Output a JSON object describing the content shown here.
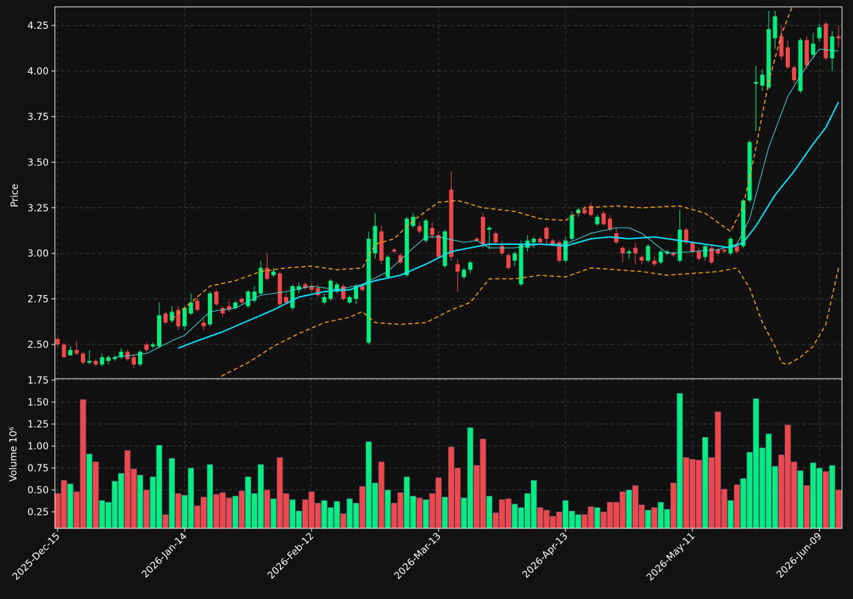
{
  "chart_data": [
    {
      "type": "candlestick",
      "ylabel": "Price",
      "ylim": [
        2.312,
        4.352
      ],
      "yticks": [
        {
          "value": 2.5,
          "label": "2.50"
        },
        2.75,
        {
          "value": 3,
          "label": "3.00"
        },
        3.25,
        {
          "value": 3.5,
          "label": "3.50"
        },
        3.75,
        {
          "value": 4,
          "label": "4.00"
        },
        4.25
      ],
      "xlim": [
        -0.43,
        123.55
      ],
      "grid": true,
      "up_color": "#00f080",
      "down_color": "#f04848",
      "open": [
        2.53,
        2.5,
        2.44,
        2.47,
        2.45,
        2.4,
        2.41,
        2.39,
        2.41,
        2.42,
        2.43,
        2.46,
        2.43,
        2.39,
        2.5,
        2.49,
        2.49,
        2.67,
        2.63,
        2.69,
        2.6,
        2.67,
        2.74,
        2.62,
        2.61,
        2.79,
        2.7,
        2.71,
        2.7,
        2.75,
        2.71,
        2.74,
        2.78,
        2.92,
        2.88,
        2.89,
        2.76,
        2.7,
        2.8,
        2.83,
        2.82,
        2.81,
        2.73,
        2.75,
        2.79,
        2.82,
        2.73,
        2.75,
        2.82,
        2.51,
        3.0,
        3.12,
        2.87,
        3.02,
        2.99,
        2.88,
        3.15,
        3.15,
        3.07,
        3.14,
        3.1,
        2.93,
        3.35,
        2.94,
        2.87,
        2.91,
        3.08,
        3.2,
        3.13,
        3.11,
        3.04,
        2.99,
        2.96,
        2.83,
        3.03,
        3.06,
        3.08,
        3.14,
        3.07,
        3.06,
        2.96,
        3.08,
        3.22,
        3.24,
        3.26,
        3.16,
        3.22,
        3.19,
        3.11,
        3.03,
        3.0,
        3.03,
        2.98,
        2.96,
        2.96,
        2.95,
        3.0,
        3.0,
        2.96,
        3.13,
        3.06,
        3.01,
        2.98,
        3.03,
        3.02,
        3.02,
        3.0,
        3.04,
        3.04,
        3.29,
        3.93,
        3.92,
        3.91,
        4.18,
        4.19,
        4.13,
        4.02,
        3.89,
        4.17,
        4.09,
        4.18,
        4.26,
        4.07,
        4.19
      ],
      "high": [
        2.54,
        2.51,
        2.49,
        2.52,
        2.46,
        2.47,
        2.42,
        2.45,
        2.44,
        2.44,
        2.48,
        2.47,
        2.45,
        2.47,
        2.51,
        2.51,
        2.73,
        2.68,
        2.71,
        2.71,
        2.71,
        2.78,
        2.77,
        2.64,
        2.79,
        2.8,
        2.71,
        2.74,
        2.74,
        2.76,
        2.8,
        2.82,
        2.96,
        3.0,
        2.92,
        2.9,
        2.78,
        2.83,
        2.84,
        2.84,
        2.84,
        2.83,
        2.78,
        2.86,
        2.84,
        2.83,
        2.77,
        2.83,
        2.83,
        3.12,
        3.22,
        3.15,
        2.99,
        3.03,
        3.0,
        3.2,
        3.22,
        3.17,
        3.19,
        3.17,
        3.12,
        3.13,
        3.45,
        2.97,
        2.92,
        2.96,
        3.09,
        3.22,
        3.15,
        3.12,
        3.07,
        3.0,
        3.01,
        3.07,
        3.1,
        3.09,
        3.09,
        3.15,
        3.08,
        3.07,
        3.09,
        3.23,
        3.25,
        3.26,
        3.28,
        3.21,
        3.23,
        3.21,
        3.14,
        3.04,
        3.02,
        3.06,
        2.99,
        3.05,
        2.98,
        3.02,
        3.02,
        3.01,
        3.24,
        3.14,
        3.07,
        3.03,
        3.05,
        3.05,
        3.03,
        3.03,
        3.09,
        3.06,
        3.3,
        3.62,
        4.03,
        4.01,
        4.33,
        4.33,
        4.25,
        4.17,
        4.03,
        4.18,
        4.19,
        4.21,
        4.26,
        4.27,
        4.22,
        4.25
      ],
      "low": [
        2.49,
        2.43,
        2.44,
        2.44,
        2.39,
        2.39,
        2.38,
        2.38,
        2.39,
        2.41,
        2.42,
        2.41,
        2.37,
        2.38,
        2.46,
        2.48,
        2.48,
        2.61,
        2.62,
        2.58,
        2.58,
        2.66,
        2.68,
        2.58,
        2.6,
        2.71,
        2.65,
        2.68,
        2.69,
        2.72,
        2.7,
        2.73,
        2.77,
        2.85,
        2.87,
        2.71,
        2.72,
        2.69,
        2.78,
        2.8,
        2.79,
        2.76,
        2.72,
        2.74,
        2.78,
        2.74,
        2.72,
        2.72,
        2.79,
        2.5,
        2.97,
        2.94,
        2.86,
        3.0,
        2.94,
        2.87,
        3.14,
        3.11,
        3.06,
        3.08,
        2.97,
        2.92,
        2.96,
        2.79,
        2.86,
        2.89,
        3.07,
        3.03,
        3.02,
        3.05,
        2.99,
        2.91,
        2.93,
        2.82,
        3.01,
        3.03,
        3.05,
        3.05,
        3.04,
        2.95,
        2.95,
        3.07,
        3.2,
        3.21,
        3.2,
        3.15,
        3.15,
        3.12,
        3.05,
        2.95,
        2.97,
        2.94,
        2.94,
        2.95,
        2.93,
        2.94,
        2.99,
        2.98,
        2.95,
        3.05,
        3.0,
        2.96,
        2.96,
        2.94,
        2.99,
        3.0,
        2.99,
        3.0,
        3.03,
        3.28,
        3.67,
        3.89,
        3.9,
        4.12,
        4.06,
        4.01,
        3.93,
        3.88,
        4.01,
        4.07,
        4.16,
        4.06,
        4.0,
        4.13
      ],
      "close": [
        2.5,
        2.43,
        2.47,
        2.45,
        2.4,
        2.41,
        2.39,
        2.43,
        2.43,
        2.43,
        2.46,
        2.42,
        2.39,
        2.46,
        2.47,
        2.5,
        2.66,
        2.62,
        2.68,
        2.6,
        2.7,
        2.73,
        2.69,
        2.6,
        2.78,
        2.72,
        2.67,
        2.69,
        2.73,
        2.73,
        2.79,
        2.79,
        2.92,
        2.86,
        2.9,
        2.72,
        2.73,
        2.82,
        2.82,
        2.81,
        2.8,
        2.77,
        2.76,
        2.85,
        2.83,
        2.75,
        2.76,
        2.82,
        2.8,
        3.08,
        3.15,
        2.96,
        2.98,
        3.01,
        2.95,
        3.19,
        3.2,
        3.12,
        3.18,
        3.1,
        2.98,
        3.12,
        2.98,
        2.9,
        2.91,
        2.95,
        3.07,
        3.05,
        3.14,
        3.06,
        3.0,
        2.92,
        3.0,
        3.05,
        3.07,
        3.08,
        3.06,
        3.08,
        3.05,
        2.96,
        3.07,
        3.21,
        3.24,
        3.22,
        3.21,
        3.2,
        3.16,
        3.13,
        3.06,
        3.0,
        3.01,
        3.0,
        2.96,
        3.04,
        2.94,
        3.01,
        3.01,
        2.99,
        3.13,
        3.06,
        3.01,
        2.97,
        3.04,
        2.95,
        3.0,
        3.01,
        3.08,
        3.01,
        3.29,
        3.61,
        3.94,
        3.98,
        4.23,
        4.3,
        4.08,
        4.02,
        3.95,
        4.17,
        4.03,
        4.15,
        4.24,
        4.07,
        4.19,
        4.18
      ],
      "lines": [
        {
          "color": "#40e0e0",
          "width": 1,
          "dashed": false,
          "x": [
            9,
            14,
            18,
            20,
            24,
            28,
            32,
            36,
            40,
            44,
            48,
            52,
            56,
            58,
            60,
            64,
            66,
            68,
            72,
            76,
            80,
            84,
            88,
            90,
            92,
            96,
            100,
            104,
            107,
            109,
            112,
            115,
            118,
            120,
            123
          ],
          "values": [
            2.43,
            2.45,
            2.52,
            2.55,
            2.68,
            2.7,
            2.77,
            2.79,
            2.82,
            2.8,
            2.83,
            2.9,
            3.03,
            3.09,
            3.09,
            3.06,
            3.07,
            3.03,
            3.03,
            3.05,
            3.05,
            3.11,
            3.14,
            3.14,
            3.11,
            3.0,
            3.01,
            3.02,
            3.05,
            3.19,
            3.58,
            3.86,
            4.03,
            4.12,
            4.11
          ]
        },
        {
          "color": "#00e5ff",
          "width": 2,
          "dashed": false,
          "x": [
            19,
            22,
            26,
            30,
            34,
            38,
            42,
            46,
            50,
            54,
            58,
            62,
            65,
            68,
            72,
            76,
            80,
            84,
            87,
            90,
            94,
            98,
            102,
            106,
            108,
            110,
            113,
            116,
            119,
            121,
            123
          ],
          "values": [
            2.48,
            2.52,
            2.57,
            2.63,
            2.69,
            2.76,
            2.79,
            2.8,
            2.85,
            2.88,
            2.94,
            3.01,
            3.03,
            3.05,
            3.05,
            3.05,
            3.04,
            3.08,
            3.09,
            3.08,
            3.09,
            3.07,
            3.05,
            3.03,
            3.06,
            3.15,
            3.32,
            3.45,
            3.6,
            3.69,
            3.83
          ]
        },
        {
          "color": "#ffa500",
          "width": 1.5,
          "dashed": true,
          "x": [
            18,
            21,
            24,
            28,
            32,
            36,
            40,
            44,
            48,
            50,
            53,
            56,
            60,
            63,
            67,
            72,
            76,
            80,
            83,
            88,
            92,
            98,
            102,
            106,
            108,
            110,
            112,
            114,
            116,
            117
          ],
          "values": [
            2.64,
            2.73,
            2.82,
            2.85,
            2.9,
            2.92,
            2.93,
            2.91,
            2.92,
            3.05,
            3.08,
            3.18,
            3.28,
            3.29,
            3.25,
            3.23,
            3.19,
            3.18,
            3.25,
            3.26,
            3.25,
            3.26,
            3.22,
            3.12,
            3.26,
            3.58,
            3.94,
            4.2,
            4.38,
            4.45
          ]
        },
        {
          "color": "#ffa500",
          "width": 1.5,
          "dashed": true,
          "x": [
            25,
            26,
            30,
            34,
            38,
            42,
            46,
            48,
            50,
            54,
            58,
            62,
            65,
            68,
            72,
            76,
            80,
            84,
            88,
            92,
            96,
            100,
            104,
            107,
            109,
            111,
            113,
            114,
            115,
            117,
            119,
            121,
            123
          ],
          "values": [
            2.3,
            2.33,
            2.4,
            2.49,
            2.56,
            2.62,
            2.65,
            2.68,
            2.62,
            2.61,
            2.62,
            2.69,
            2.73,
            2.86,
            2.86,
            2.88,
            2.87,
            2.92,
            2.91,
            2.9,
            2.88,
            2.89,
            2.9,
            2.92,
            2.81,
            2.62,
            2.49,
            2.4,
            2.39,
            2.43,
            2.49,
            2.61,
            2.92
          ]
        }
      ]
    },
    {
      "type": "bar",
      "ylabel": "Volume  10⁶",
      "ylim": [
        0.0625,
        1.766
      ],
      "yticks": [
        0.25,
        {
          "value": 0.5,
          "label": "0.50"
        },
        0.75,
        {
          "value": 1,
          "label": "1.00"
        },
        1.25,
        {
          "value": 1.5,
          "label": "1.50"
        },
        1.75
      ],
      "xlim": [
        -0.43,
        123.55
      ],
      "grid": true,
      "xticks": [
        {
          "value": 0,
          "label": "2025-Dec-15"
        },
        {
          "value": 20,
          "label": "2026-Jan-14"
        },
        {
          "value": 40,
          "label": "2026-Feb-12"
        },
        {
          "value": 60,
          "label": "2026-Mar-13"
        },
        {
          "value": 80,
          "label": "2026-Apr-13"
        },
        {
          "value": 100,
          "label": "2026-May-11"
        },
        {
          "value": 120,
          "label": "2026-Jun-09"
        }
      ],
      "values": [
        0.46,
        0.61,
        0.57,
        0.48,
        1.53,
        0.91,
        0.82,
        0.38,
        0.36,
        0.6,
        0.69,
        0.95,
        0.74,
        0.67,
        0.5,
        0.65,
        1.01,
        0.22,
        0.86,
        0.46,
        0.44,
        0.75,
        0.32,
        0.42,
        0.79,
        0.45,
        0.47,
        0.41,
        0.43,
        0.49,
        0.65,
        0.46,
        0.79,
        0.5,
        0.4,
        0.87,
        0.46,
        0.39,
        0.26,
        0.39,
        0.48,
        0.35,
        0.38,
        0.3,
        0.37,
        0.23,
        0.4,
        0.35,
        0.54,
        1.05,
        0.58,
        0.82,
        0.5,
        0.35,
        0.47,
        0.65,
        0.43,
        0.41,
        0.39,
        0.46,
        0.64,
        0.42,
        0.99,
        0.75,
        0.41,
        1.21,
        0.78,
        1.08,
        0.43,
        0.24,
        0.39,
        0.4,
        0.34,
        0.3,
        0.46,
        0.61,
        0.3,
        0.27,
        0.2,
        0.25,
        0.38,
        0.26,
        0.22,
        0.22,
        0.31,
        0.3,
        0.25,
        0.36,
        0.36,
        0.48,
        0.5,
        0.55,
        0.33,
        0.27,
        0.3,
        0.36,
        0.28,
        0.58,
        1.6,
        0.87,
        0.85,
        0.84,
        1.1,
        0.87,
        1.39,
        0.51,
        0.38,
        0.56,
        0.63,
        0.93,
        1.54,
        0.98,
        1.14,
        0.77,
        0.9,
        1.24,
        0.82,
        0.72,
        0.55,
        0.81,
        0.75,
        0.71,
        0.78,
        0.5
      ]
    }
  ]
}
